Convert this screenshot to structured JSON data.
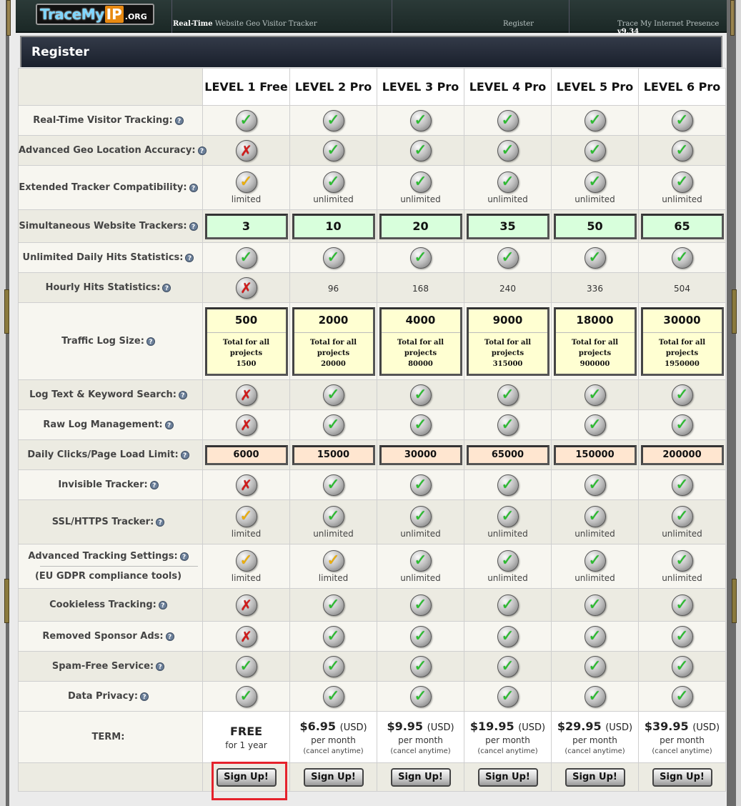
{
  "header": {
    "logo": {
      "part_a": "TraceMy",
      "part_b": "IP",
      "part_c": ".ORG"
    },
    "nav_tagline_bold": "Real-Time",
    "nav_tagline_rest": " Website Geo Visitor Tracker",
    "nav_register": "Register",
    "nav_right": "Trace My Internet Presence",
    "version": "v9.34"
  },
  "panel": {
    "title": "Register"
  },
  "levels": [
    "LEVEL 1 Free",
    "LEVEL 2 Pro",
    "LEVEL 3 Pro",
    "LEVEL 4 Pro",
    "LEVEL 5 Pro",
    "LEVEL 6 Pro"
  ],
  "help_glyph": "?",
  "icon_glyphs": {
    "ok": "✓",
    "limited": "✓",
    "no": "✗"
  },
  "features": [
    {
      "label": "Real-Time Visitor Tracking:",
      "type": "icons",
      "values": [
        "ok",
        "ok",
        "ok",
        "ok",
        "ok",
        "ok"
      ]
    },
    {
      "label": "Advanced Geo Location Accuracy:",
      "type": "icons",
      "values": [
        "no",
        "ok",
        "ok",
        "ok",
        "ok",
        "ok"
      ]
    },
    {
      "label": "Extended Tracker Compatibility:",
      "type": "icons",
      "values": [
        "limited",
        "ok",
        "ok",
        "ok",
        "ok",
        "ok"
      ],
      "subs": [
        "limited",
        "unlimited",
        "unlimited",
        "unlimited",
        "unlimited",
        "unlimited"
      ]
    },
    {
      "label": "Simultaneous Website Trackers:",
      "type": "green",
      "values": [
        "3",
        "10",
        "20",
        "35",
        "50",
        "65"
      ]
    },
    {
      "label": "Unlimited Daily Hits Statistics:",
      "type": "icons",
      "values": [
        "ok",
        "ok",
        "ok",
        "ok",
        "ok",
        "ok"
      ]
    },
    {
      "label": "Hourly Hits Statistics:",
      "type": "mixed",
      "values": [
        "no",
        "96",
        "168",
        "240",
        "336",
        "504"
      ]
    },
    {
      "label": "Traffic Log Size:",
      "type": "yellow",
      "values": [
        "500",
        "2000",
        "4000",
        "9000",
        "18000",
        "30000"
      ],
      "total_label": "Total for all projects",
      "totals": [
        "1500",
        "20000",
        "80000",
        "315000",
        "900000",
        "1950000"
      ]
    },
    {
      "label": "Log Text & Keyword Search:",
      "type": "icons",
      "values": [
        "no",
        "ok",
        "ok",
        "ok",
        "ok",
        "ok"
      ]
    },
    {
      "label": "Raw Log Management:",
      "type": "icons",
      "values": [
        "no",
        "ok",
        "ok",
        "ok",
        "ok",
        "ok"
      ]
    },
    {
      "label": "Daily Clicks/Page Load Limit:",
      "type": "peach",
      "values": [
        "6000",
        "15000",
        "30000",
        "65000",
        "150000",
        "200000"
      ]
    },
    {
      "label": "Invisible Tracker:",
      "type": "icons",
      "values": [
        "no",
        "ok",
        "ok",
        "ok",
        "ok",
        "ok"
      ]
    },
    {
      "label": "SSL/HTTPS Tracker:",
      "type": "icons",
      "values": [
        "limited",
        "ok",
        "ok",
        "ok",
        "ok",
        "ok"
      ],
      "subs": [
        "limited",
        "unlimited",
        "unlimited",
        "unlimited",
        "unlimited",
        "unlimited"
      ]
    },
    {
      "label": "Advanced Tracking Settings:",
      "label2": "(EU GDPR compliance tools)",
      "type": "icons",
      "values": [
        "limited",
        "limited",
        "ok",
        "ok",
        "ok",
        "ok"
      ],
      "subs": [
        "limited",
        "limited",
        "unlimited",
        "unlimited",
        "unlimited",
        "unlimited"
      ]
    },
    {
      "label": "Cookieless Tracking:",
      "type": "icons",
      "values": [
        "no",
        "ok",
        "ok",
        "ok",
        "ok",
        "ok"
      ]
    },
    {
      "label": "Removed Sponsor Ads:",
      "type": "icons",
      "values": [
        "no",
        "ok",
        "ok",
        "ok",
        "ok",
        "ok"
      ]
    },
    {
      "label": "Spam-Free Service:",
      "type": "icons",
      "values": [
        "ok",
        "ok",
        "ok",
        "ok",
        "ok",
        "ok"
      ]
    },
    {
      "label": "Data Privacy:",
      "type": "icons",
      "values": [
        "ok",
        "ok",
        "ok",
        "ok",
        "ok",
        "ok"
      ]
    }
  ],
  "term": {
    "label": "TERM:",
    "free_title": "FREE",
    "free_sub": "for 1 year",
    "prices": [
      "$6.95",
      "$9.95",
      "$19.95",
      "$29.95",
      "$39.95"
    ],
    "currency": "(USD)",
    "per": "per month",
    "cancel": "(cancel anytime)"
  },
  "signup_label": "Sign Up!"
}
